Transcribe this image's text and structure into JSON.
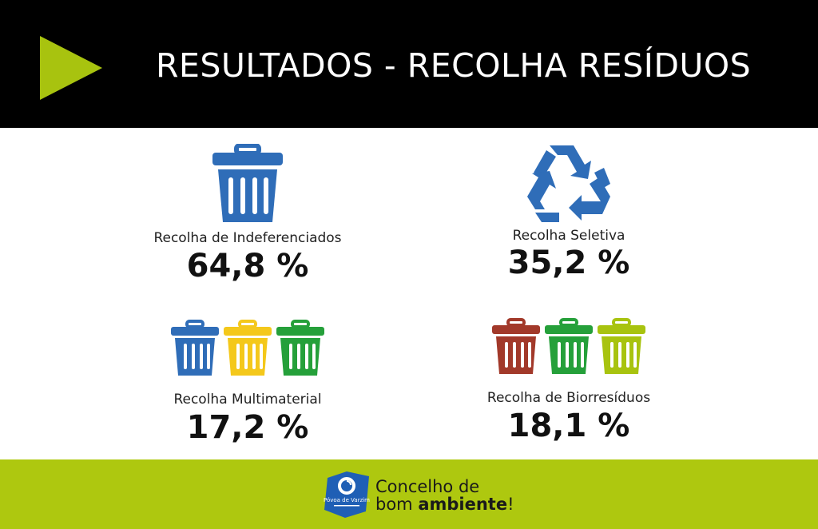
{
  "header": {
    "title": "RESULTADOS - RECOLHA RESÍDUOS",
    "accent_color": "#a8c30f"
  },
  "stats": {
    "indiferenciados": {
      "label": "Recolha de Indeferenciados",
      "value": "64,8 %",
      "icon": "trash-bin-icon",
      "bin_colors": [
        "#2f6db8"
      ]
    },
    "seletiva": {
      "label": "Recolha Seletiva",
      "value": "35,2 %",
      "icon": "recycle-icon",
      "bin_colors": [
        "#2f6db8"
      ]
    },
    "multimaterial": {
      "label": "Recolha Multimaterial",
      "value": "17,2 %",
      "icon": "trash-bin-icon",
      "bin_colors": [
        "#2f6db8",
        "#f4c81b",
        "#25a03a"
      ]
    },
    "biorresiduos": {
      "label": "Recolha de Biorresíduos",
      "value": "18,1 %",
      "icon": "trash-bin-icon",
      "bin_colors": [
        "#a2392a",
        "#25a03a",
        "#a8c30f"
      ]
    }
  },
  "footer": {
    "background": "#aec80f",
    "logo_text": "Póvoa de Varzim",
    "tagline_line1": "Concelho de",
    "tagline_bom": "bom ",
    "tagline_ambiente": "ambiente",
    "tagline_excl": "!"
  }
}
